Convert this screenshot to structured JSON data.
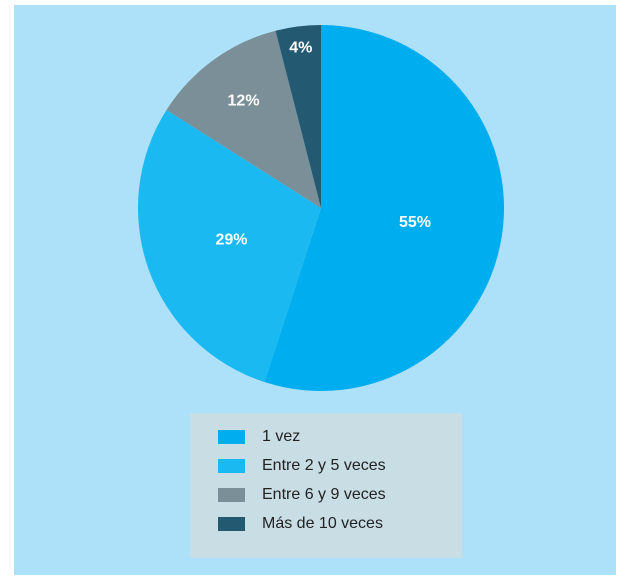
{
  "chart_data": {
    "type": "pie",
    "categories": [
      "1 vez",
      "Entre 2 y 5 veces",
      "Entre 6 y 9 veces",
      "Más de 10 veces"
    ],
    "values": [
      55,
      29,
      12,
      4
    ],
    "value_labels": [
      "55%",
      "29%",
      "12%",
      "4%"
    ],
    "colors": [
      "#00aeef",
      "#1ab9f1",
      "#7b8f98",
      "#245a71"
    ],
    "legend": "bottom"
  }
}
